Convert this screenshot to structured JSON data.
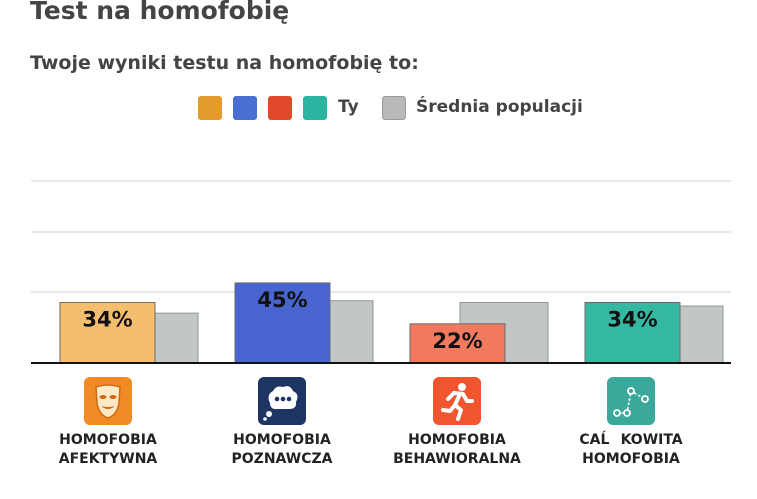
{
  "title": "Test na homofobię",
  "subtitle": "Twoje wyniki testu na homofobię to:",
  "legend": {
    "you_label": "Ty",
    "average_label": "Średnia populacji",
    "you_colors": [
      "#e59a2c",
      "#4a6fd4",
      "#e04a2a",
      "#2bb5a0"
    ],
    "average_color": "#b9b9b9"
  },
  "chart_data": {
    "type": "bar",
    "categories": [
      "HOMOFOBIA\nAFEKTYWNA",
      "HOMOFOBIA\nPOZNAWCZA",
      "HOMOFOBIA\nBEHAWIORALNA",
      "CAĹKOWITA\nHOMOFOBIA"
    ],
    "series": [
      {
        "name": "Ty",
        "values": [
          34,
          45,
          22,
          34
        ],
        "labels": [
          "34%",
          "45%",
          "22%",
          "34%"
        ],
        "colors": [
          "#f5bd6e",
          "#4764cf",
          "#f17a5e",
          "#35b8a2"
        ]
      },
      {
        "name": "Średnia populacji",
        "values": [
          28,
          35,
          34,
          32
        ],
        "color": "#c2c6c6"
      }
    ],
    "ylim": [
      0,
      100
    ],
    "grid": true,
    "legend_position": "top-center"
  },
  "icons": [
    "theater-mask-icon",
    "thought-bubble-icon",
    "running-person-icon",
    "graph-nodes-icon"
  ],
  "icon_colors": [
    "#f08a24",
    "#1e3563",
    "#f0552e",
    "#3aa89b"
  ]
}
